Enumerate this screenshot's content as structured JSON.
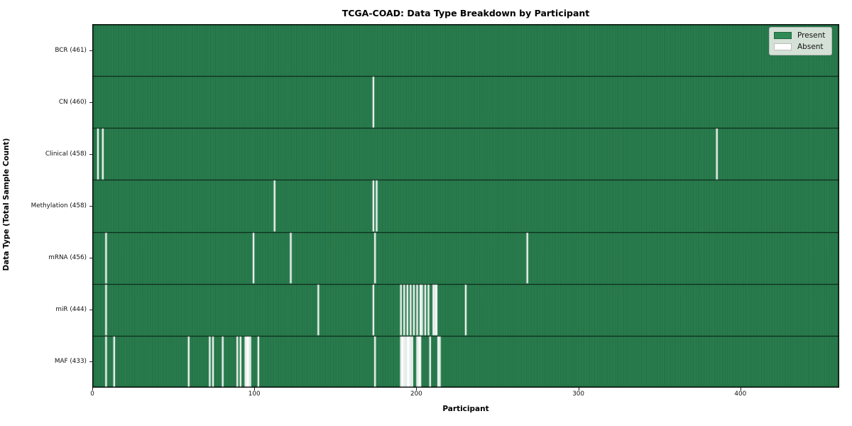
{
  "title": "TCGA-COAD: Data Type Breakdown by Participant",
  "xlabel": "Participant",
  "ylabel": "Data Type (Total Sample Count)",
  "legend": {
    "present_label": "Present",
    "absent_label": "Absent"
  },
  "colors": {
    "present": "#2e8b57",
    "absent": "#ffffff",
    "bar_edge": "rgba(0,0,0,0.5)",
    "row_divider": "rgba(0,0,0,0.8)",
    "plot_border": "#000000",
    "legend_bg": "#f3f3ef"
  },
  "chart_data": {
    "type": "heatmap",
    "title": "TCGA-COAD: Data Type Breakdown by Participant",
    "xlabel": "Participant",
    "ylabel": "Data Type (Total Sample Count)",
    "n_participants": 461,
    "x_range": [
      0,
      461
    ],
    "x_ticks": [
      0,
      100,
      200,
      300,
      400
    ],
    "grid": false,
    "legend_position": "upper right",
    "legend_entries": [
      "Present",
      "Absent"
    ],
    "cell_states": {
      "present": 1,
      "absent": 0
    },
    "rows": [
      {
        "label": "BCR (461)",
        "data_type": "BCR",
        "total_samples": 461,
        "absent_participants": []
      },
      {
        "label": "CN (460)",
        "data_type": "CN",
        "total_samples": 460,
        "absent_participants": [
          173
        ]
      },
      {
        "label": "Clinical (458)",
        "data_type": "Clinical",
        "total_samples": 458,
        "absent_participants": [
          3,
          6,
          385
        ]
      },
      {
        "label": "Methylation (458)",
        "data_type": "Methylation",
        "total_samples": 458,
        "absent_participants": [
          112,
          173,
          175
        ]
      },
      {
        "label": "mRNA (456)",
        "data_type": "mRNA",
        "total_samples": 456,
        "absent_participants": [
          8,
          99,
          122,
          174,
          268
        ]
      },
      {
        "label": "miR (444)",
        "data_type": "miR",
        "total_samples": 444,
        "absent_participants": [
          8,
          139,
          173,
          190,
          192,
          194,
          196,
          198,
          200,
          202,
          203,
          205,
          207,
          210,
          211,
          212,
          230
        ]
      },
      {
        "label": "MAF (433)",
        "data_type": "MAF",
        "total_samples": 433,
        "absent_participants": [
          8,
          13,
          59,
          72,
          74,
          80,
          89,
          91,
          94,
          95,
          96,
          97,
          102,
          174,
          190,
          191,
          192,
          193,
          194,
          195,
          196,
          197,
          200,
          201,
          202,
          208,
          213,
          214
        ]
      }
    ]
  }
}
